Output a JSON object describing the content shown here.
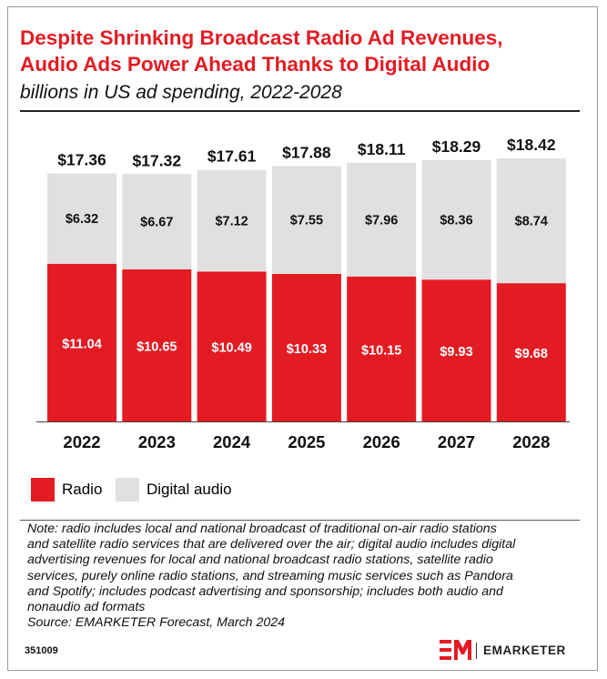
{
  "title_lines": [
    "Despite Shrinking Broadcast Radio Ad Revenues,",
    "Audio Ads Power Ahead Thanks to Digital Audio"
  ],
  "subtitle": "billions in US ad spending, 2022-2028",
  "colors": {
    "radio": "#e31b23",
    "digital": "#e0e0e0",
    "title": "#e31b23"
  },
  "chart_data": {
    "type": "bar",
    "stacked": true,
    "categories": [
      "2022",
      "2023",
      "2024",
      "2025",
      "2026",
      "2027",
      "2028"
    ],
    "series": [
      {
        "name": "Radio",
        "values": [
          11.04,
          10.65,
          10.49,
          10.33,
          10.15,
          9.93,
          9.68
        ],
        "labels": [
          "$11.04",
          "$10.65",
          "$10.49",
          "$10.33",
          "$10.15",
          "$9.93",
          "$9.68"
        ]
      },
      {
        "name": "Digital audio",
        "values": [
          6.32,
          6.67,
          7.12,
          7.55,
          7.96,
          8.36,
          8.74
        ],
        "labels": [
          "$6.32",
          "$6.67",
          "$7.12",
          "$7.55",
          "$7.96",
          "$8.36",
          "$8.74"
        ]
      }
    ],
    "totals": [
      17.36,
      17.32,
      17.61,
      17.88,
      18.11,
      18.29,
      18.42
    ],
    "total_labels": [
      "$17.36",
      "$17.32",
      "$17.61",
      "$17.88",
      "$18.11",
      "$18.29",
      "$18.42"
    ],
    "ylim": [
      0,
      18.42
    ],
    "grid": false,
    "legend": "bottom-left"
  },
  "legend": {
    "radio": "Radio",
    "digital": "Digital audio"
  },
  "note_lines": [
    "Note: radio includes local and national broadcast of traditional on-air radio stations",
    "and satellite radio services that are delivered over the air; digital audio includes digital",
    "advertising revenues for local and national broadcast radio stations, satellite radio",
    "services, purely online radio stations, and streaming music services such as Pandora",
    "and Spotify; includes podcast advertising and sponsorship; includes both audio and",
    "nonaudio ad formats"
  ],
  "source": "Source: EMARKETER Forecast, March 2024",
  "chart_id": "351009",
  "brand": {
    "name": "EMARKETER",
    "logo": "em-logo-icon"
  }
}
